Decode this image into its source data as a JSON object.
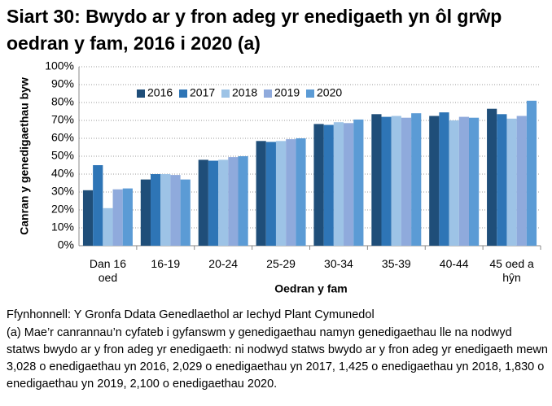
{
  "chart_data": {
    "type": "bar",
    "title": "Siart 30: Bwydo ar y fron adeg yr enedigaeth yn ôl grŵp oedran y fam, 2016 i 2020 (a)",
    "x_label": "Oedran y fam",
    "y_label": "Canran y genedigaethau byw",
    "categories": [
      "Dan 16 oed",
      "16-19",
      "20-24",
      "25-29",
      "30-34",
      "35-39",
      "40-44",
      "45 oed a hŷn"
    ],
    "series": [
      {
        "name": "2016",
        "color": "#1f4e79",
        "values": [
          31,
          37,
          48,
          58.5,
          68,
          73.5,
          72.5,
          76.5
        ]
      },
      {
        "name": "2017",
        "color": "#2e75b6",
        "values": [
          45,
          40,
          47.5,
          58,
          67.5,
          72,
          74.5,
          73.5
        ]
      },
      {
        "name": "2018",
        "color": "#9dc3e6",
        "values": [
          21,
          40,
          48,
          58.5,
          69,
          72.5,
          70,
          71
        ]
      },
      {
        "name": "2019",
        "color": "#8faadc",
        "values": [
          31.5,
          39.5,
          49.5,
          59.5,
          68.5,
          71.5,
          72,
          72.5
        ]
      },
      {
        "name": "2020",
        "color": "#5b9bd5",
        "values": [
          32,
          37,
          50,
          60,
          70.5,
          74,
          71.5,
          81
        ]
      }
    ],
    "ylim": [
      0,
      100
    ],
    "yticks": [
      {
        "value": 0,
        "label": "0%"
      },
      {
        "value": 10,
        "label": "10%"
      },
      {
        "value": 20,
        "label": "20%"
      },
      {
        "value": 30,
        "label": "30%"
      },
      {
        "value": 40,
        "label": "40%"
      },
      {
        "value": 50,
        "label": "50%"
      },
      {
        "value": 60,
        "label": "60%"
      },
      {
        "value": 70,
        "label": "70%"
      },
      {
        "value": 80,
        "label": "80%"
      },
      {
        "value": 90,
        "label": "90%"
      },
      {
        "value": 100,
        "label": "100%"
      }
    ],
    "grid": true,
    "legend": "top",
    "source": "Ffynhonnell: Y Gronfa Ddata Genedlaethol ar Iechyd Plant Cymunedol",
    "note": "(a) Mae’r canrannau’n cyfateb i gyfanswm y genedigaethau namyn genedigaethau lle na nodwyd statws bwydo ar y fron adeg yr enedigaeth: ni nodwyd statws bwydo ar y fron adeg yr enedigaeth mewn 3,028 o enedigaethau yn 2016, 2,029 o enedigaethau yn 2017, 1,425 o enedigaethau yn 2018, 1,830 o enedigaethau yn 2019, 2,100 o enedigaethau 2020."
  }
}
